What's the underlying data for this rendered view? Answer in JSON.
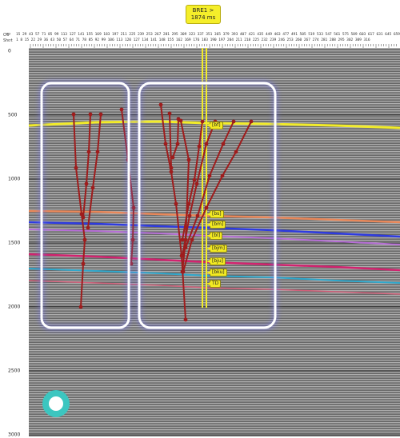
{
  "well_tag": {
    "name": "BRE1",
    "arrow": ">",
    "depth": "1874 ms"
  },
  "ruler": {
    "row1_label": "CMP",
    "row1_text": "15 29 43 57 71 85 99 113 127 141 155 169 183 197 211 225 239 253 267 281 295 309 323 337 351 365 379 393 407 421 435 449 463 477 491 505 519 533 547 561 575 589 603 617 631 645 659",
    "row2_label": "Shot",
    "row2_text": "1 8 15 22 29 36 43 50 57 64 71 78 85 92 99 106 113 120 127 134 141 148 155 162 169 176 183 190 197 204 211 218 225 232 239 246 253 260 267 274 281 288 295 302 309 316"
  },
  "depth_axis": {
    "labels": [
      {
        "value": 0,
        "text": "0"
      },
      {
        "value": 500,
        "text": "500"
      },
      {
        "value": 1000,
        "text": "1000"
      },
      {
        "value": 1500,
        "text": "1500"
      },
      {
        "value": 2000,
        "text": "2000"
      },
      {
        "value": 2500,
        "text": "2500"
      },
      {
        "value": 3000,
        "text": "3000"
      }
    ]
  },
  "horizon_labels": [
    {
      "id": "bf",
      "text": "[bf]"
    },
    {
      "id": "bs",
      "text": "[bs]"
    },
    {
      "id": "bm",
      "text": "[bm]"
    },
    {
      "id": "bl",
      "text": "[bl]"
    },
    {
      "id": "bjm",
      "text": "[bjm]"
    },
    {
      "id": "bju",
      "text": "[bju]"
    },
    {
      "id": "bku",
      "text": "[bku]"
    },
    {
      "id": "td",
      "text": "TD"
    }
  ],
  "colors": {
    "yellow_horizon": "#f2ec2a",
    "orange_horizon": "#e9885a",
    "blue_horizon": "#2e3be0",
    "violet_horizon": "#b76fd7",
    "magenta_horizon": "#d2236f",
    "cyan_horizon": "#2fa8cc",
    "pink_horizon": "#d2607a",
    "fault_stick": "#9e1d1d",
    "selection_box": "#ffffff",
    "cursor": "#3cc6c0"
  }
}
